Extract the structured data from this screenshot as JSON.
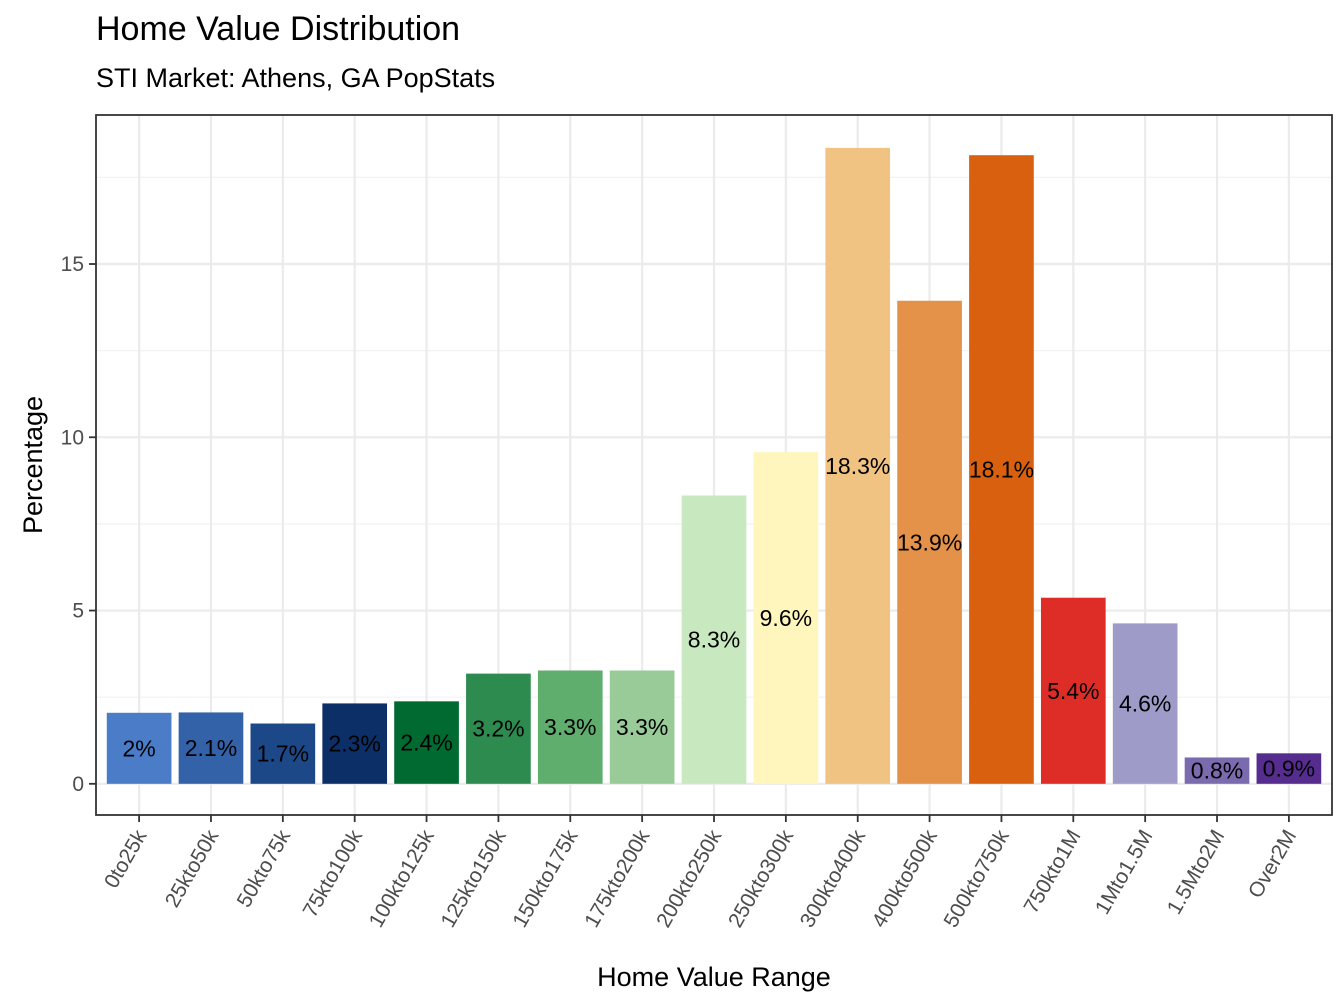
{
  "chart_data": {
    "type": "bar",
    "title": "Home Value Distribution",
    "subtitle": "STI Market: Athens, GA PopStats",
    "xlabel": "Home Value Range",
    "ylabel": "Percentage",
    "ylim": [
      -0.9,
      19.3
    ],
    "yticks": [
      0,
      5,
      10,
      15
    ],
    "grid": true,
    "categories": [
      "0to25k",
      "25kto50k",
      "50kto75k",
      "75kto100k",
      "100kto125k",
      "125kto150k",
      "150kto175k",
      "175kto200k",
      "200kto250k",
      "250kto300k",
      "300kto400k",
      "400kto500k",
      "500kto750k",
      "750kto1M",
      "1Mto1.5M",
      "1.5Mto2M",
      "Over2M"
    ],
    "values": [
      2.05,
      2.06,
      1.74,
      2.32,
      2.38,
      3.18,
      3.27,
      3.27,
      8.32,
      9.57,
      18.35,
      13.94,
      18.14,
      5.37,
      4.63,
      0.76,
      0.88
    ],
    "labels": [
      "2%",
      "2.1%",
      "1.7%",
      "2.3%",
      "2.4%",
      "3.2%",
      "3.3%",
      "3.3%",
      "8.3%",
      "9.6%",
      "18.3%",
      "13.9%",
      "18.1%",
      "5.4%",
      "4.6%",
      "0.8%",
      "0.9%"
    ],
    "colors": [
      "#4A7CC8",
      "#3362A8",
      "#1C4888",
      "#0C2F68",
      "#006A30",
      "#2E8B4F",
      "#60AE6E",
      "#98CB98",
      "#C8E8C0",
      "#FEF6BD",
      "#F0C382",
      "#E49149",
      "#D9600F",
      "#DE2D26",
      "#9E9BC8",
      "#7A6BAE",
      "#562D8F"
    ]
  }
}
